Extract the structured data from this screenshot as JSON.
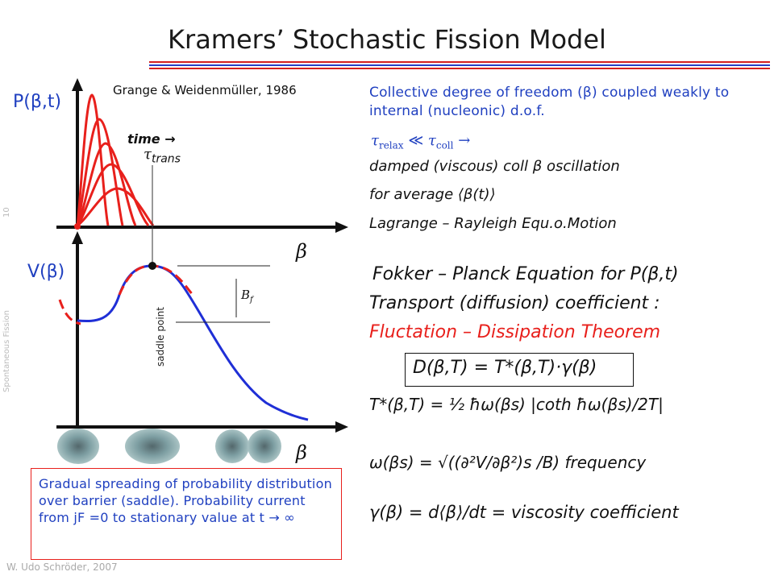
{
  "title": "Kramers’ Stochastic Fission Model",
  "reference": "Grange & Weidenmüller, 1986",
  "axes": {
    "p_label": "P(β,t)",
    "v_label": "V(β)",
    "beta": "β"
  },
  "annotations": {
    "time": "time →",
    "tau_trans_symbol": "τ",
    "tau_trans_sub": "trans",
    "saddle_point": "saddle point",
    "bf_symbol": "B",
    "bf_sub": "f"
  },
  "intro_text": "Collective degree of freedom (β) coupled weakly to internal (nucleonic) d.o.f.",
  "equations": {
    "tau_relax": "τ",
    "tau_relax_sub": "relax",
    "tau_rel": "≪",
    "tau_coll": "τ",
    "tau_coll_sub": "coll",
    "tau_arrow": "→",
    "damped": "damped (viscous) coll β oscillation",
    "average": "for average ⟨β(t)⟩",
    "lagrange": "Lagrange – Rayleigh Equ.o.Motion",
    "fokker_planck": "Fokker – Planck  Equation for  P(β,t)",
    "transport": "Transport (diffusion) coefficient :",
    "fdt": "Fluctation – Dissipation Theorem",
    "D": "D(β,T) = T*(β,T)·γ(β)",
    "T_star": "T*(β,T) = ½ ħω(βs) |coth ħω(βs)/2T|",
    "omega": "ω(βs) = √((∂²V/∂β²)s /B)   frequency",
    "gamma": "γ(β) = d⟨β⟩/dt = viscosity coefficient"
  },
  "caption": "Gradual spreading of probability distribution over barrier (saddle). Probability current from jF =0 to stationary value at t → ∞",
  "side_label": "Spontaneous Fission",
  "page_number": "10",
  "author": "W. Udo Schröder, 2007",
  "colors": {
    "accent_blue": "#2040c0",
    "curve_red": "#e8201c",
    "curve_blue": "#1f2fd6",
    "rule_red": "#d42020",
    "blob": "#7d9ea2"
  }
}
